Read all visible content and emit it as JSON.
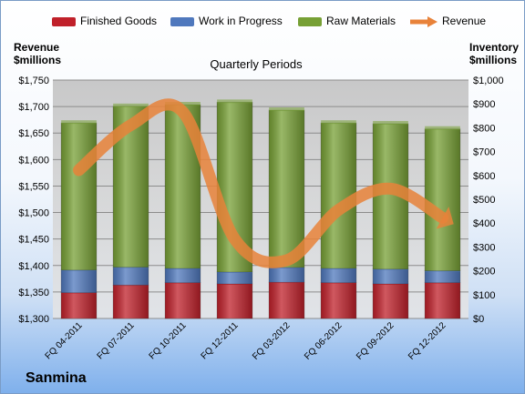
{
  "company": "Sanmina",
  "left_axis_title_lines": [
    "Revenue",
    "$millions"
  ],
  "right_axis_title_lines": [
    "Inventory",
    "$millions"
  ],
  "chart_data": {
    "type": "bar",
    "stacked": true,
    "subtitle": "Quarterly Periods",
    "categories": [
      "FQ 04-2011",
      "FQ 07-2011",
      "FQ 10-2011",
      "FQ 12-2011",
      "FQ 03-2012",
      "FQ 06-2012",
      "FQ 09-2012",
      "FQ 12-2012"
    ],
    "series": [
      {
        "name": "Finished Goods",
        "color": "#c0202a",
        "values": [
          108,
          140,
          150,
          145,
          152,
          150,
          145,
          150
        ]
      },
      {
        "name": "Work in Progress",
        "color": "#4f78bd",
        "values": [
          95,
          75,
          60,
          50,
          62,
          60,
          62,
          50
        ]
      },
      {
        "name": "Raw Materials",
        "color": "#77a035",
        "values": [
          617,
          675,
          687,
          712,
          660,
          610,
          610,
          595
        ]
      }
    ],
    "line_series": {
      "name": "Revenue",
      "color": "#e8823a",
      "values": [
        1580,
        1665,
        1690,
        1450,
        1410,
        1505,
        1545,
        1490
      ]
    },
    "legend_order": [
      "Finished Goods",
      "Work in Progress",
      "Raw Materials",
      "Revenue"
    ],
    "left_axis": {
      "min": 1300,
      "max": 1750,
      "step": 50,
      "tick_labels": [
        "$1,300",
        "$1,350",
        "$1,400",
        "$1,450",
        "$1,500",
        "$1,550",
        "$1,600",
        "$1,650",
        "$1,700",
        "$1,750"
      ]
    },
    "right_axis": {
      "min": 0,
      "max": 1000,
      "step": 100,
      "tick_labels": [
        "$0",
        "$100",
        "$200",
        "$300",
        "$400",
        "$500",
        "$600",
        "$700",
        "$800",
        "$900",
        "$1,000"
      ]
    },
    "legend_position": "top",
    "grid": true
  }
}
